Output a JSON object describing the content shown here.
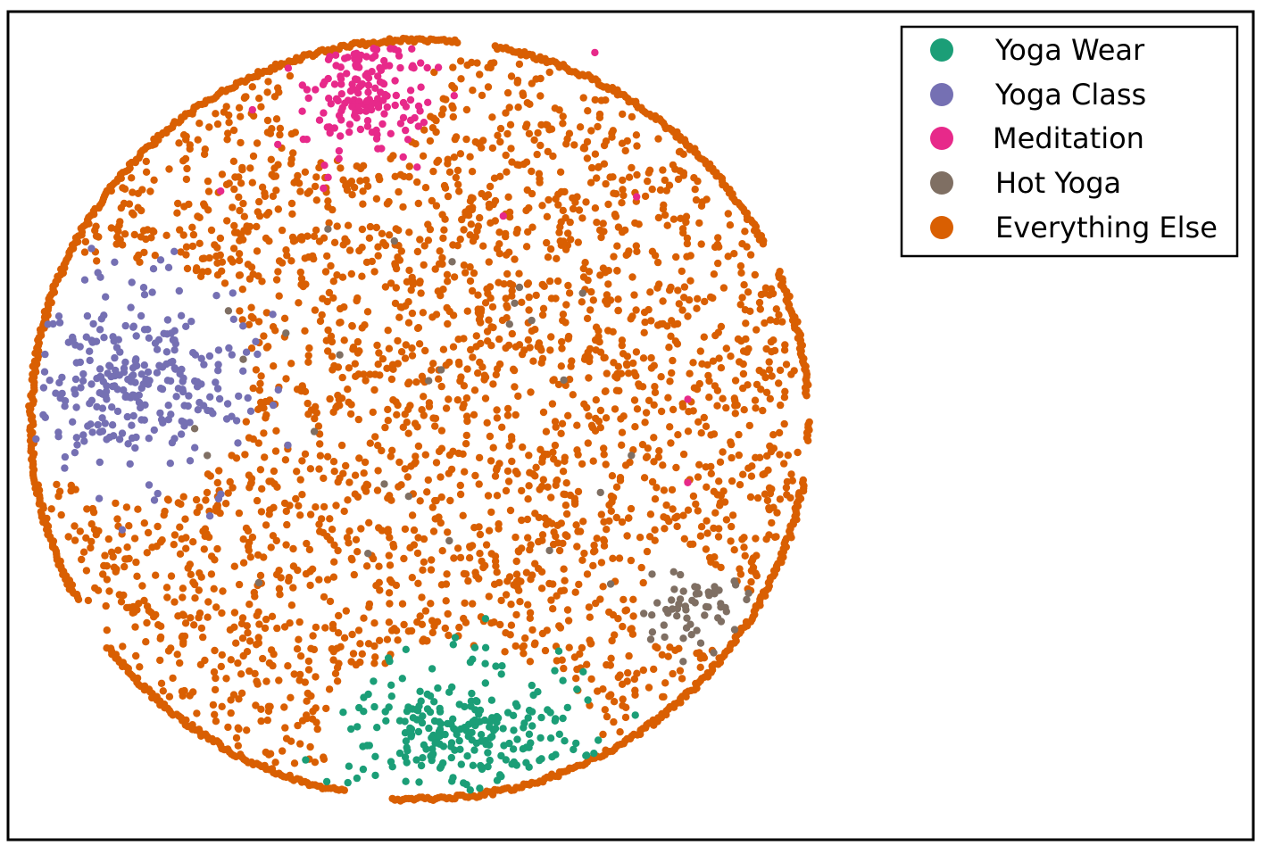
{
  "chart_data": {
    "type": "scatter",
    "title": "",
    "xlabel": "",
    "ylabel": "",
    "axes_ticks": "none",
    "grid": false,
    "legend_position": "top-right",
    "x_range": [
      -1,
      1
    ],
    "y_range": [
      -1,
      1
    ],
    "series": [
      {
        "name": "Yoga Wear",
        "color": "#1b9e77"
      },
      {
        "name": "Yoga Class",
        "color": "#7570b3"
      },
      {
        "name": "Meditation",
        "color": "#e7298a"
      },
      {
        "name": "Hot Yoga",
        "color": "#7f6f63"
      },
      {
        "name": "Everything Else",
        "color": "#d95f02"
      }
    ]
  }
}
